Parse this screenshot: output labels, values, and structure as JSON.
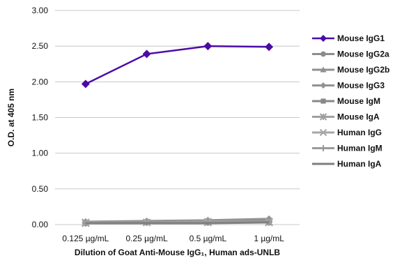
{
  "chart_data": {
    "type": "line",
    "title": "",
    "xlabel": "Dilution of Goat Anti-Mouse IgG₁, Human ads-UNLB",
    "ylabel": "O.D. at 405 nm",
    "categories": [
      "0.125 µg/mL",
      "0.25 µg/mL",
      "0.5 µg/mL",
      "1 µg/mL"
    ],
    "ylim": [
      0,
      3
    ],
    "y_ticks": [
      "0.00",
      "0.50",
      "1.00",
      "1.50",
      "2.00",
      "2.50",
      "3.00"
    ],
    "grid": true,
    "legend_position": "right",
    "series": [
      {
        "name": "Mouse IgG1",
        "values": [
          1.97,
          2.39,
          2.5,
          2.49
        ],
        "color": "#4b0aa8",
        "marker": "diamond"
      },
      {
        "name": "Mouse IgG2a",
        "values": [
          0.03,
          0.04,
          0.05,
          0.06
        ],
        "color": "#8c8c8c",
        "marker": "circle"
      },
      {
        "name": "Mouse IgG2b",
        "values": [
          0.03,
          0.04,
          0.05,
          0.07
        ],
        "color": "#8f8f8f",
        "marker": "triangle"
      },
      {
        "name": "Mouse IgG3",
        "values": [
          0.04,
          0.05,
          0.06,
          0.08
        ],
        "color": "#929292",
        "marker": "diamond"
      },
      {
        "name": "Mouse IgM",
        "values": [
          0.02,
          0.03,
          0.03,
          0.03
        ],
        "color": "#888888",
        "marker": "square"
      },
      {
        "name": "Mouse IgA",
        "values": [
          0.02,
          0.03,
          0.03,
          0.03
        ],
        "color": "#a0a0a0",
        "marker": "star"
      },
      {
        "name": "Human IgG",
        "values": [
          0.03,
          0.03,
          0.04,
          0.04
        ],
        "color": "#a6a6a6",
        "marker": "x"
      },
      {
        "name": "Human IgM",
        "values": [
          0.02,
          0.03,
          0.03,
          0.04
        ],
        "color": "#9a9a9a",
        "marker": "plus"
      },
      {
        "name": "Human IgA",
        "values": [
          0.02,
          0.02,
          0.02,
          0.03
        ],
        "color": "#7f7f7f",
        "marker": "none"
      }
    ]
  }
}
